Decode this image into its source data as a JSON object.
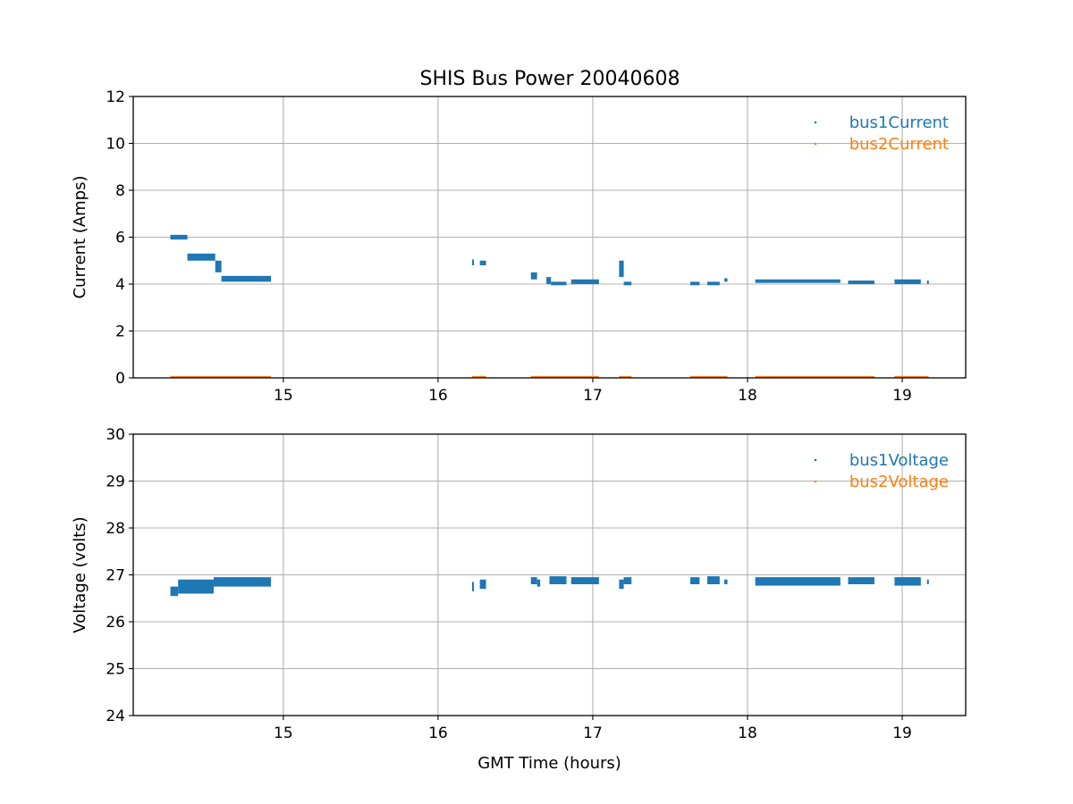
{
  "figure_title": "SHIS Bus Power 20040608",
  "colors": {
    "series1": "#1f77b4",
    "series2": "#ff7f0e",
    "grid": "#b0b0b0",
    "axes": "#000000"
  },
  "chart_data": [
    {
      "type": "scatter",
      "title": "SHIS Bus Power 20040608",
      "xlabel": "",
      "ylabel": "Current (Amps)",
      "xlim": [
        14.03,
        19.41
      ],
      "ylim": [
        0,
        12
      ],
      "xticks": [
        15,
        16,
        17,
        18,
        19
      ],
      "yticks": [
        0,
        2,
        4,
        6,
        8,
        10,
        12
      ],
      "grid": true,
      "legend_position": "top-right",
      "series": [
        {
          "name": "bus1Current",
          "color": "#1f77b4",
          "segments": [
            {
              "x": [
                14.27,
                14.38
              ],
              "y": [
                5.9,
                6.1
              ]
            },
            {
              "x": [
                14.38,
                14.56
              ],
              "y": [
                5.0,
                5.3
              ]
            },
            {
              "x": [
                14.56,
                14.6
              ],
              "y": [
                4.5,
                5.0
              ]
            },
            {
              "x": [
                14.6,
                14.92
              ],
              "y": [
                4.1,
                4.35
              ]
            },
            {
              "x": [
                16.22,
                16.23
              ],
              "y": [
                4.8,
                5.05
              ]
            },
            {
              "x": [
                16.27,
                16.31
              ],
              "y": [
                4.8,
                5.0
              ]
            },
            {
              "x": [
                16.6,
                16.64
              ],
              "y": [
                4.2,
                4.5
              ]
            },
            {
              "x": [
                16.7,
                16.73
              ],
              "y": [
                4.0,
                4.3
              ]
            },
            {
              "x": [
                16.73,
                16.83
              ],
              "y": [
                3.95,
                4.1
              ]
            },
            {
              "x": [
                16.86,
                17.04
              ],
              "y": [
                4.0,
                4.2
              ]
            },
            {
              "x": [
                17.17,
                17.2
              ],
              "y": [
                4.3,
                5.0
              ]
            },
            {
              "x": [
                17.2,
                17.25
              ],
              "y": [
                3.95,
                4.1
              ]
            },
            {
              "x": [
                17.63,
                17.69
              ],
              "y": [
                3.95,
                4.1
              ]
            },
            {
              "x": [
                17.74,
                17.82
              ],
              "y": [
                3.95,
                4.1
              ]
            },
            {
              "x": [
                17.85,
                17.87
              ],
              "y": [
                4.1,
                4.25
              ]
            },
            {
              "x": [
                18.05,
                18.6
              ],
              "y": [
                4.05,
                4.2
              ]
            },
            {
              "x": [
                18.65,
                18.82
              ],
              "y": [
                4.0,
                4.15
              ]
            },
            {
              "x": [
                18.95,
                19.12
              ],
              "y": [
                4.0,
                4.2
              ]
            },
            {
              "x": [
                19.16,
                19.17
              ],
              "y": [
                4.0,
                4.15
              ]
            }
          ]
        },
        {
          "name": "bus2Current",
          "color": "#ff7f0e",
          "segments": [
            {
              "x": [
                14.27,
                14.92
              ],
              "y": [
                0.02,
                0.08
              ]
            },
            {
              "x": [
                16.22,
                16.31
              ],
              "y": [
                0.02,
                0.08
              ]
            },
            {
              "x": [
                16.6,
                17.04
              ],
              "y": [
                0.02,
                0.08
              ]
            },
            {
              "x": [
                17.17,
                17.25
              ],
              "y": [
                0.02,
                0.08
              ]
            },
            {
              "x": [
                17.63,
                17.87
              ],
              "y": [
                0.02,
                0.08
              ]
            },
            {
              "x": [
                18.05,
                18.82
              ],
              "y": [
                0.02,
                0.08
              ]
            },
            {
              "x": [
                18.95,
                19.17
              ],
              "y": [
                0.02,
                0.08
              ]
            }
          ]
        }
      ]
    },
    {
      "type": "scatter",
      "title": "",
      "xlabel": "GMT Time (hours)",
      "ylabel": "Voltage (volts)",
      "xlim": [
        14.03,
        19.41
      ],
      "ylim": [
        24,
        30
      ],
      "xticks": [
        15,
        16,
        17,
        18,
        19
      ],
      "yticks": [
        24,
        25,
        26,
        27,
        28,
        29,
        30
      ],
      "grid": true,
      "legend_position": "top-right",
      "series": [
        {
          "name": "bus1Voltage",
          "color": "#1f77b4",
          "segments": [
            {
              "x": [
                14.27,
                14.32
              ],
              "y": [
                26.55,
                26.75
              ]
            },
            {
              "x": [
                14.32,
                14.55
              ],
              "y": [
                26.6,
                26.9
              ]
            },
            {
              "x": [
                14.55,
                14.92
              ],
              "y": [
                26.75,
                26.95
              ]
            },
            {
              "x": [
                16.22,
                16.23
              ],
              "y": [
                26.65,
                26.85
              ]
            },
            {
              "x": [
                16.27,
                16.31
              ],
              "y": [
                26.7,
                26.9
              ]
            },
            {
              "x": [
                16.6,
                16.64
              ],
              "y": [
                26.8,
                26.95
              ]
            },
            {
              "x": [
                16.64,
                16.66
              ],
              "y": [
                26.75,
                26.9
              ]
            },
            {
              "x": [
                16.72,
                16.83
              ],
              "y": [
                26.8,
                26.97
              ]
            },
            {
              "x": [
                16.86,
                17.04
              ],
              "y": [
                26.8,
                26.95
              ]
            },
            {
              "x": [
                17.17,
                17.2
              ],
              "y": [
                26.7,
                26.9
              ]
            },
            {
              "x": [
                17.2,
                17.25
              ],
              "y": [
                26.8,
                26.95
              ]
            },
            {
              "x": [
                17.63,
                17.69
              ],
              "y": [
                26.8,
                26.95
              ]
            },
            {
              "x": [
                17.74,
                17.82
              ],
              "y": [
                26.8,
                26.97
              ]
            },
            {
              "x": [
                17.85,
                17.87
              ],
              "y": [
                26.8,
                26.9
              ]
            },
            {
              "x": [
                18.05,
                18.6
              ],
              "y": [
                26.77,
                26.95
              ]
            },
            {
              "x": [
                18.65,
                18.82
              ],
              "y": [
                26.8,
                26.95
              ]
            },
            {
              "x": [
                18.95,
                19.12
              ],
              "y": [
                26.77,
                26.95
              ]
            },
            {
              "x": [
                19.16,
                19.17
              ],
              "y": [
                26.8,
                26.9
              ]
            }
          ]
        },
        {
          "name": "bus2Voltage",
          "color": "#ff7f0e",
          "segments": []
        }
      ]
    }
  ]
}
